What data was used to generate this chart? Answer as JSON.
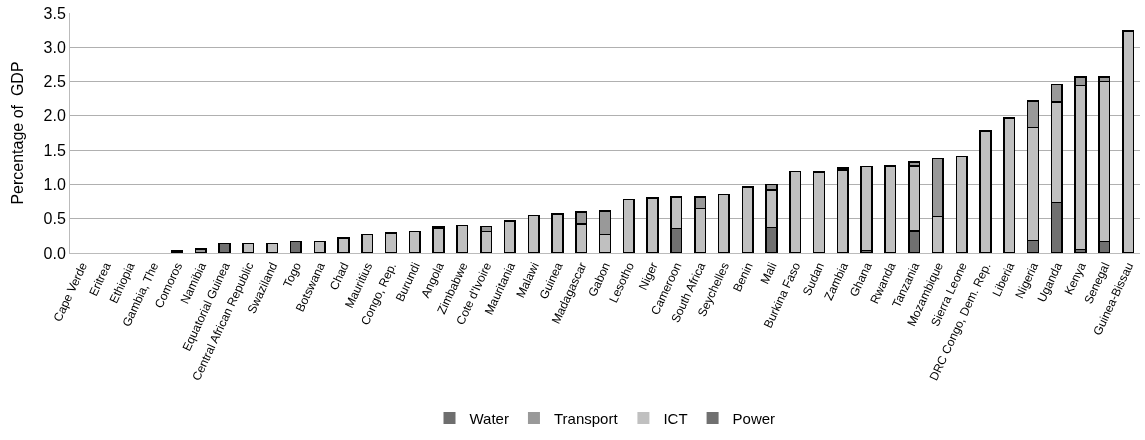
{
  "chart_data": {
    "type": "bar",
    "stacked": true,
    "ylabel": "Percentage of  GDP",
    "categories": [
      "Cape Verde",
      "Eritrea",
      "Ethiopia",
      "Gambia, The",
      "Comoros",
      "Namibia",
      "Equatorial Guinea",
      "Central African Republic",
      "Swaziland",
      "Togo",
      "Botswana",
      "Chad",
      "Mauritius",
      "Congo, Rep.",
      "Burundi",
      "Angola",
      "Zimbabwe",
      "Cote d'Ivoire",
      "Mauritania",
      "Malawi",
      "Guinea",
      "Madagascar",
      "Gabon",
      "Lesotho",
      "Niger",
      "Cameroon",
      "South Africa",
      "Seychelles",
      "Benin",
      "Mali",
      "Burkina Faso",
      "Sudan",
      "Zambia",
      "Ghana",
      "Rwanda",
      "Tanzania",
      "Mozambique",
      "Sierra Leone",
      "DRC Congo, Dem. Rep.",
      "Liberia",
      "Nigeria",
      "Uganda",
      "Kenya",
      "Senegal",
      "Guinea-Bissau"
    ],
    "series": [
      {
        "name": "Power",
        "color": "#707070",
        "values": [
          0,
          0,
          0,
          0,
          0,
          0,
          0.14,
          0,
          0,
          0.17,
          0,
          0,
          0,
          0,
          0,
          0,
          0,
          0,
          0,
          0,
          0,
          0,
          0,
          0,
          0,
          0.36,
          0,
          0,
          0,
          0.37,
          0,
          0,
          0,
          0.04,
          0,
          0.32,
          0,
          0,
          0,
          0,
          0.18,
          0.74,
          0.05,
          0.17,
          0
        ]
      },
      {
        "name": "ICT",
        "color": "#c0c0c0",
        "values": [
          0,
          0,
          0,
          0,
          0.03,
          0,
          0,
          0.14,
          0.14,
          0,
          0.17,
          0.22,
          0.27,
          0.29,
          0.31,
          0.36,
          0.4,
          0.31,
          0.47,
          0.55,
          0.57,
          0.42,
          0.27,
          0.78,
          0.8,
          0.46,
          0.65,
          0.85,
          0.96,
          0.55,
          1.19,
          1.18,
          1.21,
          1.22,
          1.27,
          0.95,
          0.53,
          1.41,
          1.78,
          1.97,
          1.65,
          1.46,
          2.39,
          2.33,
          3.24
        ]
      },
      {
        "name": "Transport",
        "color": "#999999",
        "values": [
          0,
          0,
          0,
          0,
          0,
          0.06,
          0,
          0,
          0,
          0,
          0,
          0,
          0,
          0,
          0,
          0.02,
          0,
          0.08,
          0,
          0,
          0,
          0.18,
          0.34,
          0,
          0,
          0,
          0.17,
          0,
          0,
          0.08,
          0,
          0,
          0.03,
          0,
          0,
          0.06,
          0.85,
          0,
          0,
          0,
          0.39,
          0.26,
          0.13,
          0.07,
          0
        ]
      },
      {
        "name": "Water",
        "color": "#6e6e6e",
        "values": [
          0,
          0,
          0,
          0,
          0,
          0,
          0,
          0,
          0,
          0,
          0,
          0,
          0,
          0,
          0,
          0,
          0,
          0,
          0,
          0,
          0,
          0,
          0,
          0,
          0,
          0,
          0,
          0,
          0,
          0,
          0,
          0,
          0,
          0,
          0,
          0,
          0,
          0,
          0,
          0,
          0,
          0,
          0,
          0,
          0
        ]
      }
    ],
    "ylim": [
      0,
      3.5
    ],
    "yticks": [
      {
        "value": 0,
        "label": "0.0"
      },
      {
        "value": 0.5,
        "label": "0.5"
      },
      {
        "value": 1,
        "label": "1.0"
      },
      {
        "value": 1.5,
        "label": "1.5"
      },
      {
        "value": 2,
        "label": "2.0"
      },
      {
        "value": 2.5,
        "label": "2.5"
      },
      {
        "value": 3,
        "label": "3.0"
      },
      {
        "value": 3.5,
        "label": "3.5"
      }
    ],
    "grid": "y",
    "legend": "bottom"
  }
}
